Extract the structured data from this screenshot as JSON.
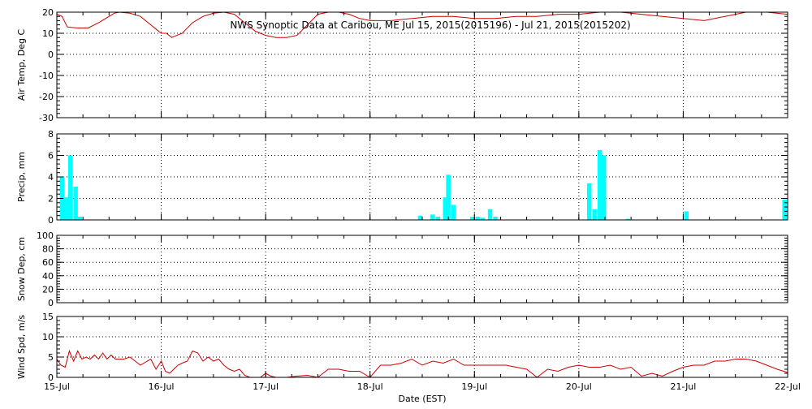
{
  "chart_data": {
    "title": "NWS Synoptic Data at Caribou, ME   Jul 15, 2015(2015196) - Jul 21, 2015(2015202)",
    "xlabel": "Date (EST)",
    "x_tick_labels": [
      "15-Jul",
      "16-Jul",
      "17-Jul",
      "18-Jul",
      "19-Jul",
      "20-Jul",
      "21-Jul",
      "22-Jul"
    ],
    "xlim_days": [
      0,
      7
    ],
    "grid": true,
    "panels": [
      {
        "id": "air-temp",
        "type": "line",
        "ylabel": "Air Temp, Deg C",
        "ylim": [
          -30,
          20
        ],
        "yticks": [
          -30,
          -20,
          -10,
          0,
          10,
          20
        ],
        "color": "#cc0000",
        "series": [
          {
            "x": [
              0.0,
              0.05,
              0.1,
              0.2,
              0.3,
              0.4,
              0.5,
              0.55,
              0.6,
              0.7,
              0.8,
              0.9,
              0.95,
              1.0,
              1.05,
              1.1,
              1.2,
              1.3,
              1.4,
              1.5,
              1.6,
              1.7,
              1.8,
              1.9,
              2.0,
              2.1,
              2.2,
              2.3,
              2.4,
              2.5,
              2.6,
              2.7,
              2.8,
              2.9,
              3.0,
              3.2,
              3.4,
              3.6,
              3.8,
              4.0,
              4.2,
              4.4,
              4.6,
              4.8,
              5.0,
              5.2,
              5.4,
              5.6,
              5.8,
              6.0,
              6.2,
              6.4,
              6.6,
              6.8,
              7.0
            ],
            "y": [
              19,
              18,
              13,
              12.5,
              12.5,
              15,
              18,
              19.5,
              20,
              19.5,
              18,
              14,
              12,
              10,
              10,
              8,
              10,
              15,
              18,
              19.5,
              20,
              19,
              15,
              11,
              9,
              8,
              8,
              9,
              14,
              19,
              20,
              20,
              19,
              17,
              16,
              16,
              17,
              18,
              18,
              17,
              17,
              18,
              18,
              19,
              19,
              20,
              20,
              19,
              18,
              17,
              16,
              18,
              20,
              20,
              19
            ]
          }
        ]
      },
      {
        "id": "precip",
        "type": "bar",
        "ylabel": "Precip, mm",
        "ylim": [
          0,
          8
        ],
        "yticks": [
          0,
          2,
          4,
          6,
          8
        ],
        "color": "#00ffff",
        "bars": [
          {
            "x": 0.05,
            "y": 4.0
          },
          {
            "x": 0.09,
            "y": 2.1
          },
          {
            "x": 0.13,
            "y": 6.0
          },
          {
            "x": 0.18,
            "y": 3.1
          },
          {
            "x": 0.22,
            "y": 0.3
          },
          {
            "x": 3.48,
            "y": 0.4
          },
          {
            "x": 3.6,
            "y": 0.5
          },
          {
            "x": 3.65,
            "y": 0.3
          },
          {
            "x": 3.72,
            "y": 2.1
          },
          {
            "x": 3.75,
            "y": 4.2
          },
          {
            "x": 3.8,
            "y": 1.4
          },
          {
            "x": 3.98,
            "y": 0.3
          },
          {
            "x": 4.03,
            "y": 0.3
          },
          {
            "x": 4.08,
            "y": 0.2
          },
          {
            "x": 4.15,
            "y": 1.0
          },
          {
            "x": 4.2,
            "y": 0.3
          },
          {
            "x": 5.1,
            "y": 3.4
          },
          {
            "x": 5.15,
            "y": 1.0
          },
          {
            "x": 5.2,
            "y": 6.5
          },
          {
            "x": 5.24,
            "y": 6.0
          },
          {
            "x": 5.47,
            "y": 0.1
          },
          {
            "x": 6.03,
            "y": 0.8
          },
          {
            "x": 6.97,
            "y": 1.9
          }
        ]
      },
      {
        "id": "snow-depth",
        "type": "line",
        "ylabel": "Snow Dep, cm",
        "ylim": [
          0,
          100
        ],
        "yticks": [
          0,
          20,
          40,
          60,
          80,
          100
        ],
        "color": "#cc0000",
        "series": []
      },
      {
        "id": "wind-speed",
        "type": "line",
        "ylabel": "Wind Spd, m/s",
        "ylim": [
          0,
          15
        ],
        "yticks": [
          0,
          5,
          10,
          15
        ],
        "color": "#cc0000",
        "series": [
          {
            "x": [
              0.0,
              0.04,
              0.08,
              0.12,
              0.16,
              0.2,
              0.24,
              0.28,
              0.32,
              0.36,
              0.4,
              0.44,
              0.48,
              0.52,
              0.56,
              0.6,
              0.64,
              0.7,
              0.8,
              0.9,
              0.95,
              1.0,
              1.04,
              1.08,
              1.12,
              1.16,
              1.2,
              1.25,
              1.3,
              1.35,
              1.4,
              1.45,
              1.5,
              1.55,
              1.6,
              1.65,
              1.7,
              1.75,
              1.8,
              1.85,
              1.9,
              1.95,
              2.0,
              2.05,
              2.1,
              2.15,
              2.2,
              2.3,
              2.4,
              2.5,
              2.6,
              2.7,
              2.8,
              2.9,
              3.0,
              3.1,
              3.2,
              3.3,
              3.4,
              3.5,
              3.6,
              3.7,
              3.8,
              3.9,
              4.0,
              4.1,
              4.2,
              4.3,
              4.4,
              4.5,
              4.6,
              4.7,
              4.8,
              4.9,
              5.0,
              5.1,
              5.2,
              5.3,
              5.4,
              5.5,
              5.6,
              5.7,
              5.8,
              5.9,
              6.0,
              6.1,
              6.2,
              6.3,
              6.4,
              6.5,
              6.6,
              6.7,
              6.8,
              6.9,
              7.0
            ],
            "y": [
              4.5,
              3,
              2.5,
              6.5,
              4,
              6.5,
              4.5,
              5,
              4.5,
              5.5,
              4.5,
              6,
              4.5,
              5.5,
              4.5,
              4.5,
              4.5,
              5,
              3,
              4.5,
              2,
              4,
              1.5,
              1,
              2,
              3,
              3.5,
              4,
              6.5,
              6,
              4,
              5,
              4,
              4.5,
              3,
              2,
              1.5,
              2,
              0.5,
              0,
              0,
              0,
              1,
              0.3,
              0,
              0,
              0,
              0.3,
              0.5,
              0,
              2,
              2,
              1.5,
              1.5,
              0,
              3,
              3,
              3.5,
              4.5,
              3,
              4,
              3.5,
              4.5,
              3,
              3,
              3,
              3,
              3,
              2.5,
              2,
              0,
              2,
              1.5,
              2.5,
              3,
              2.5,
              2.5,
              3,
              2,
              2.5,
              0.3,
              1,
              0.3,
              1.5,
              2.5,
              3,
              3,
              4,
              4,
              4.5,
              4.5,
              4,
              3,
              2,
              1.2
            ]
          }
        ]
      }
    ]
  }
}
